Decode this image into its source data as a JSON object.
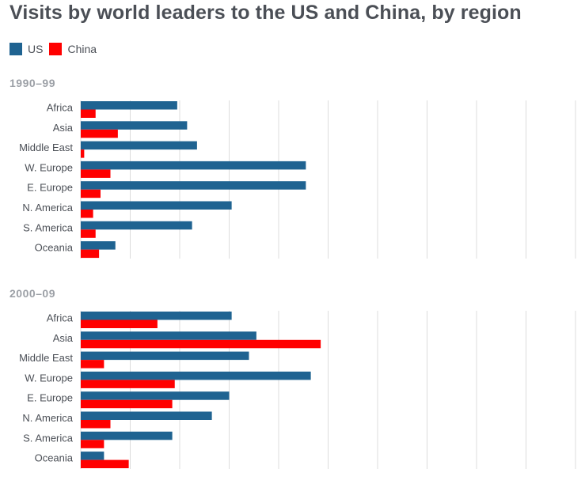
{
  "title": "Visits by world leaders to the US and China, by region",
  "colors": {
    "us": "#1f6391",
    "china": "#ff0000",
    "grid": "#dcdcdc",
    "panel_title": "#9ca0a6",
    "label": "#4b4f56"
  },
  "chart_data": {
    "type": "bar",
    "orientation": "horizontal",
    "legend": {
      "placement": "top-left",
      "entries": [
        "US",
        "China"
      ]
    },
    "grid": true,
    "xlim": [
      0,
      100
    ],
    "panels": [
      {
        "title": "1990–99",
        "categories": [
          "Africa",
          "Asia",
          "Middle East",
          "W. Europe",
          "E. Europe",
          "N. America",
          "S. America",
          "Oceania"
        ],
        "series": [
          {
            "name": "US",
            "values": [
              19.5,
              21.5,
              23.5,
              45.5,
              45.5,
              30.5,
              22.5,
              7
            ]
          },
          {
            "name": "China",
            "values": [
              3,
              7.5,
              0.7,
              6,
              4,
              2.5,
              3,
              3.7
            ]
          }
        ]
      },
      {
        "title": "2000–09",
        "categories": [
          "Africa",
          "Asia",
          "Middle East",
          "W. Europe",
          "E. Europe",
          "N. America",
          "S. America",
          "Oceania"
        ],
        "series": [
          {
            "name": "US",
            "values": [
              30.5,
              35.5,
              34,
              46.5,
              30,
              26.5,
              18.5,
              4.7
            ]
          },
          {
            "name": "China",
            "values": [
              15.5,
              48.5,
              4.7,
              19,
              18.5,
              6,
              4.7,
              9.7
            ]
          }
        ]
      }
    ]
  }
}
